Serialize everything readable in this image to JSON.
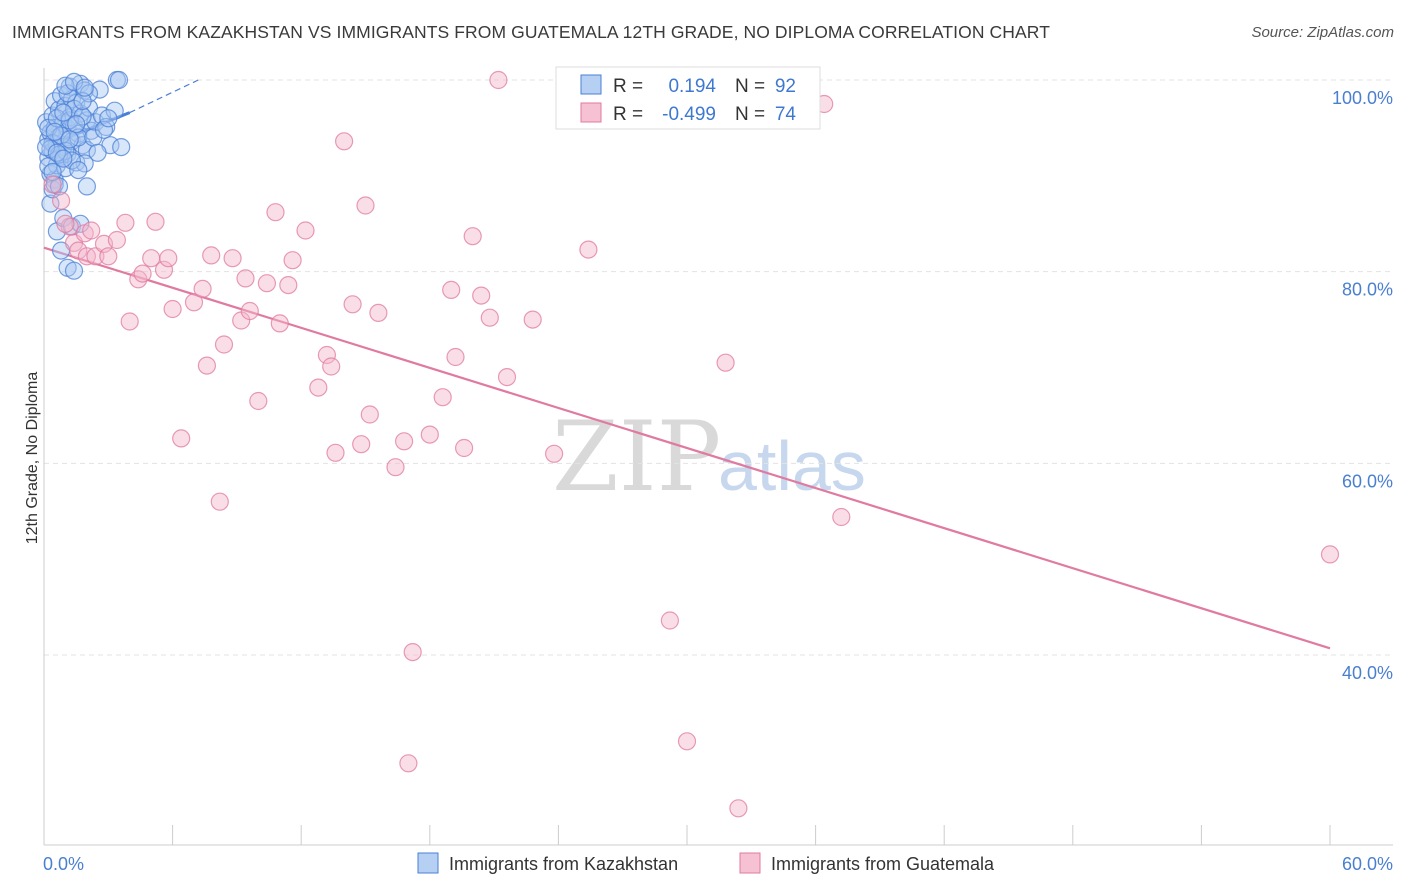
{
  "title": "IMMIGRANTS FROM KAZAKHSTAN VS IMMIGRANTS FROM GUATEMALA 12TH GRADE, NO DIPLOMA CORRELATION CHART",
  "source": "Source: ZipAtlas.com",
  "watermark": {
    "zip": "ZIP",
    "atlas": "atlas"
  },
  "stats": {
    "r_label": "R =",
    "n_label": "N =",
    "rows": [
      {
        "r": "0.194",
        "n": "92",
        "color": "#a9c8f2"
      },
      {
        "r": "-0.499",
        "n": "74",
        "color": "#f5b6ca"
      }
    ]
  },
  "chart_data": {
    "type": "scatter",
    "title": "IMMIGRANTS FROM KAZAKHSTAN VS IMMIGRANTS FROM GUATEMALA 12TH GRADE, NO DIPLOMA CORRELATION CHART",
    "xlabel": "",
    "ylabel": "12th Grade, No Diploma",
    "xlim": [
      0,
      60
    ],
    "ylim": [
      20,
      102
    ],
    "x_tick_labels": [
      "0.0%",
      "60.0%"
    ],
    "y_ticks": [
      40,
      60,
      80,
      100
    ],
    "y_tick_labels": [
      "40.0%",
      "60.0%",
      "80.0%",
      "100.0%"
    ],
    "grid": true,
    "legend_position": "bottom",
    "series": [
      {
        "name": "Immigrants from Kazakhstan",
        "color": "#4a7fd6",
        "fill": "#a9c8f2",
        "trend": {
          "x": [
            0,
            4.0
          ],
          "y": [
            93.0,
            96.6
          ]
        },
        "trend_dashed": {
          "x": [
            4.0,
            7.2
          ],
          "y": [
            96.6,
            100
          ]
        },
        "points": [
          [
            0.1,
            95.6
          ],
          [
            0.2,
            93.8
          ],
          [
            0.2,
            91.9
          ],
          [
            0.3,
            90.2
          ],
          [
            0.3,
            94.5
          ],
          [
            0.4,
            96.3
          ],
          [
            0.4,
            92.6
          ],
          [
            0.5,
            97.8
          ],
          [
            0.5,
            95.0
          ],
          [
            0.5,
            89.6
          ],
          [
            0.6,
            93.3
          ],
          [
            0.6,
            91.1
          ],
          [
            0.7,
            96.9
          ],
          [
            0.7,
            94.1
          ],
          [
            0.8,
            92.0
          ],
          [
            0.8,
            98.4
          ],
          [
            0.9,
            95.5
          ],
          [
            0.9,
            93.0
          ],
          [
            1.0,
            97.3
          ],
          [
            1.0,
            90.8
          ],
          [
            1.1,
            94.9
          ],
          [
            1.1,
            92.3
          ],
          [
            1.2,
            99.3
          ],
          [
            1.2,
            96.1
          ],
          [
            1.3,
            93.6
          ],
          [
            1.3,
            98.0
          ],
          [
            1.4,
            95.2
          ],
          [
            1.5,
            91.4
          ],
          [
            1.5,
            97.6
          ],
          [
            1.6,
            94.4
          ],
          [
            1.7,
            99.6
          ],
          [
            1.7,
            96.5
          ],
          [
            1.8,
            93.2
          ],
          [
            1.9,
            98.9
          ],
          [
            2.0,
            95.8
          ],
          [
            2.0,
            92.7
          ],
          [
            2.1,
            97.1
          ],
          [
            2.2,
            94.7
          ],
          [
            0.3,
            87.1
          ],
          [
            0.4,
            88.6
          ],
          [
            0.6,
            84.2
          ],
          [
            0.8,
            82.2
          ],
          [
            0.9,
            85.6
          ],
          [
            1.1,
            80.4
          ],
          [
            1.3,
            84.7
          ],
          [
            1.4,
            80.1
          ],
          [
            1.7,
            85.0
          ],
          [
            0.5,
            89.1
          ],
          [
            0.7,
            88.9
          ],
          [
            2.0,
            88.9
          ],
          [
            1.9,
            91.3
          ],
          [
            2.4,
            95.6
          ],
          [
            2.6,
            99.0
          ],
          [
            2.7,
            96.3
          ],
          [
            2.9,
            95.1
          ],
          [
            3.1,
            93.2
          ],
          [
            3.3,
            96.8
          ],
          [
            3.4,
            100.0
          ],
          [
            3.6,
            93.0
          ],
          [
            3.5,
            100.0
          ],
          [
            0.2,
            95.0
          ],
          [
            0.4,
            93.4
          ],
          [
            0.6,
            96.0
          ],
          [
            0.8,
            94.2
          ],
          [
            1.0,
            92.6
          ],
          [
            1.2,
            95.8
          ],
          [
            1.4,
            97.0
          ],
          [
            1.6,
            94.0
          ],
          [
            1.8,
            96.2
          ],
          [
            2.1,
            98.6
          ],
          [
            0.3,
            92.8
          ],
          [
            0.5,
            94.6
          ],
          [
            0.7,
            92.2
          ],
          [
            0.9,
            96.6
          ],
          [
            1.1,
            98.6
          ],
          [
            1.3,
            91.6
          ],
          [
            1.5,
            95.4
          ],
          [
            1.8,
            97.8
          ],
          [
            2.3,
            94.0
          ],
          [
            2.5,
            92.4
          ],
          [
            0.1,
            93.0
          ],
          [
            0.2,
            91.0
          ],
          [
            0.4,
            90.4
          ],
          [
            0.6,
            92.4
          ],
          [
            0.9,
            91.8
          ],
          [
            1.2,
            93.8
          ],
          [
            1.6,
            90.6
          ],
          [
            1.0,
            99.4
          ],
          [
            1.4,
            99.8
          ],
          [
            2.8,
            94.8
          ],
          [
            3.0,
            96.0
          ],
          [
            1.9,
            99.2
          ]
        ]
      },
      {
        "name": "Immigrants from Guatemala",
        "color": "#e07aa0",
        "fill": "#f5b6ca",
        "trend": {
          "x": [
            0,
            60
          ],
          "y": [
            82.5,
            40.7
          ]
        },
        "points": [
          [
            0.4,
            89.1
          ],
          [
            0.8,
            87.4
          ],
          [
            1.2,
            84.7
          ],
          [
            1.4,
            83.0
          ],
          [
            1.6,
            82.2
          ],
          [
            1.9,
            84.0
          ],
          [
            2.0,
            81.6
          ],
          [
            2.4,
            81.6
          ],
          [
            2.8,
            82.9
          ],
          [
            3.0,
            81.6
          ],
          [
            3.8,
            85.1
          ],
          [
            4.0,
            74.8
          ],
          [
            4.4,
            79.2
          ],
          [
            4.6,
            79.8
          ],
          [
            5.0,
            81.4
          ],
          [
            5.2,
            85.2
          ],
          [
            5.6,
            80.2
          ],
          [
            5.8,
            81.4
          ],
          [
            6.0,
            76.1
          ],
          [
            6.4,
            62.6
          ],
          [
            7.0,
            76.8
          ],
          [
            7.4,
            78.2
          ],
          [
            7.6,
            70.2
          ],
          [
            7.8,
            81.7
          ],
          [
            8.2,
            56.0
          ],
          [
            8.4,
            72.4
          ],
          [
            8.8,
            81.4
          ],
          [
            9.2,
            74.9
          ],
          [
            9.4,
            79.3
          ],
          [
            9.6,
            75.9
          ],
          [
            10.0,
            66.5
          ],
          [
            10.4,
            78.8
          ],
          [
            10.8,
            86.2
          ],
          [
            11.0,
            74.6
          ],
          [
            11.4,
            78.6
          ],
          [
            11.6,
            81.2
          ],
          [
            12.2,
            84.3
          ],
          [
            12.8,
            67.9
          ],
          [
            13.2,
            71.3
          ],
          [
            13.4,
            70.1
          ],
          [
            13.6,
            61.1
          ],
          [
            14.0,
            93.6
          ],
          [
            14.4,
            76.6
          ],
          [
            14.8,
            62.0
          ],
          [
            15.0,
            86.9
          ],
          [
            15.2,
            65.1
          ],
          [
            15.6,
            75.7
          ],
          [
            16.4,
            59.6
          ],
          [
            16.8,
            62.3
          ],
          [
            17.0,
            28.7
          ],
          [
            17.2,
            40.3
          ],
          [
            18.0,
            63.0
          ],
          [
            18.6,
            66.9
          ],
          [
            19.0,
            78.1
          ],
          [
            19.2,
            71.1
          ],
          [
            19.6,
            61.6
          ],
          [
            20.0,
            83.7
          ],
          [
            20.4,
            77.5
          ],
          [
            20.8,
            75.2
          ],
          [
            21.2,
            100.0
          ],
          [
            21.6,
            69.0
          ],
          [
            22.8,
            75.0
          ],
          [
            23.8,
            61.0
          ],
          [
            25.4,
            82.3
          ],
          [
            29.2,
            43.6
          ],
          [
            30.0,
            31.0
          ],
          [
            31.8,
            70.5
          ],
          [
            32.4,
            24.0
          ],
          [
            36.4,
            97.5
          ],
          [
            37.2,
            54.4
          ],
          [
            60.0,
            50.5
          ],
          [
            3.4,
            83.3
          ],
          [
            2.2,
            84.3
          ],
          [
            1.0,
            85.0
          ]
        ]
      }
    ]
  }
}
